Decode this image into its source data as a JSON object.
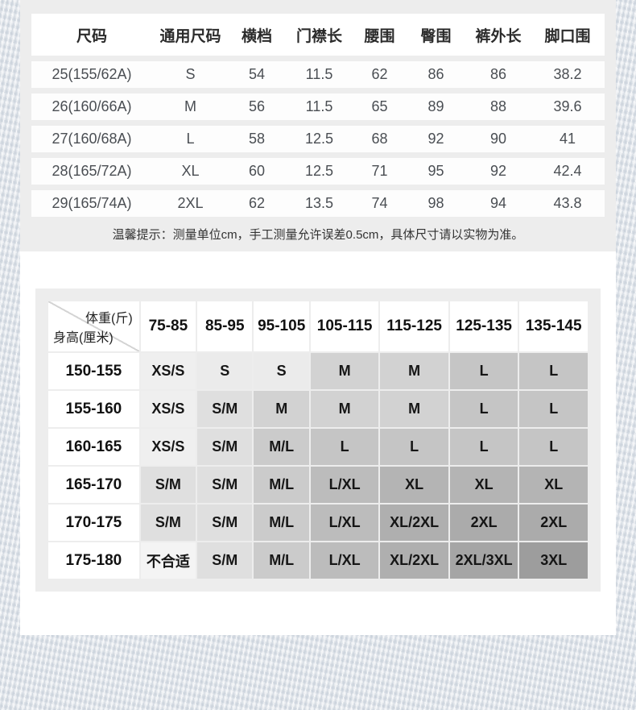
{
  "size_table": {
    "headers": [
      "尺码",
      "通用尺码",
      "横档",
      "门襟长",
      "腰围",
      "臀围",
      "裤外长",
      "脚口围"
    ],
    "rows": [
      [
        "25(155/62A)",
        "S",
        "54",
        "11.5",
        "62",
        "86",
        "86",
        "38.2"
      ],
      [
        "26(160/66A)",
        "M",
        "56",
        "11.5",
        "65",
        "89",
        "88",
        "39.6"
      ],
      [
        "27(160/68A)",
        "L",
        "58",
        "12.5",
        "68",
        "92",
        "90",
        "41"
      ],
      [
        "28(165/72A)",
        "XL",
        "60",
        "12.5",
        "71",
        "95",
        "92",
        "42.4"
      ],
      [
        "29(165/74A)",
        "2XL",
        "62",
        "13.5",
        "74",
        "98",
        "94",
        "43.8"
      ]
    ],
    "note": "温馨提示：测量单位cm，手工测量允许误差0.5cm，具体尺寸请以实物为准。"
  },
  "fit_matrix": {
    "corner": {
      "top": "体重(斤)",
      "bottom": "身高(厘米)"
    },
    "weight_columns": [
      "75-85",
      "85-95",
      "95-105",
      "105-115",
      "115-125",
      "125-135",
      "135-145"
    ],
    "rows": [
      {
        "height": "150-155",
        "sizes": [
          "XS/S",
          "S",
          "S",
          "M",
          "M",
          "L",
          "L"
        ]
      },
      {
        "height": "155-160",
        "sizes": [
          "XS/S",
          "S/M",
          "M",
          "M",
          "M",
          "L",
          "L"
        ]
      },
      {
        "height": "160-165",
        "sizes": [
          "XS/S",
          "S/M",
          "M/L",
          "L",
          "L",
          "L",
          "L"
        ]
      },
      {
        "height": "165-170",
        "sizes": [
          "S/M",
          "S/M",
          "M/L",
          "L/XL",
          "XL",
          "XL",
          "XL"
        ]
      },
      {
        "height": "170-175",
        "sizes": [
          "S/M",
          "S/M",
          "M/L",
          "L/XL",
          "XL/2XL",
          "2XL",
          "2XL"
        ]
      },
      {
        "height": "175-180",
        "sizes": [
          "不合适",
          "S/M",
          "M/L",
          "L/XL",
          "XL/2XL",
          "2XL/3XL",
          "3XL"
        ]
      }
    ],
    "shades": {
      "XS/S": "#efefef",
      "S": "#ebebeb",
      "S/M": "#dfdfdf",
      "M": "#d2d2d2",
      "M/L": "#cbcbcb",
      "L": "#c5c5c5",
      "L/XL": "#bcbcbc",
      "XL": "#b4b4b4",
      "XL/2XL": "#afafaf",
      "2XL": "#ababab",
      "2XL/3XL": "#a5a5a5",
      "3XL": "#9d9d9d",
      "不合适": "#f4f4f4"
    },
    "colors": {
      "card_bg": "#ededed",
      "cell_text": "#161616",
      "header_text": "#111111"
    }
  }
}
